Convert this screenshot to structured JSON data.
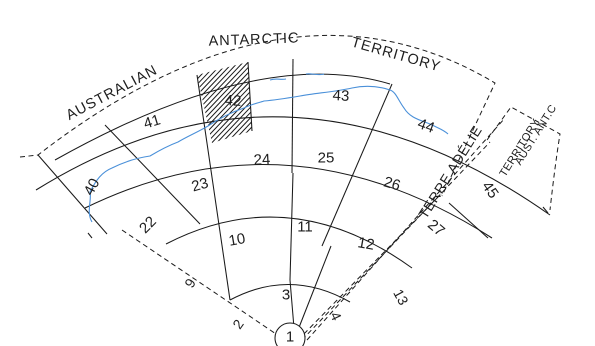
{
  "territory_labels": {
    "australian": "AUSTRALIAN",
    "antarctic": "ANTARCTIC",
    "territory": "TERRITORY",
    "terre_adelie": "TERRE ADÉLIE",
    "aust_ant_line1": "AUST. ANT.C",
    "aust_ant_line2": "TERRITORY"
  },
  "sector_numbers": {
    "s1": "1",
    "s2": "2",
    "s3": "3",
    "s4": "4",
    "s9": "9",
    "s10": "10",
    "s11": "11",
    "s12": "12",
    "s13": "13",
    "s22": "22",
    "s23": "23",
    "s24": "24",
    "s25": "25",
    "s26": "26",
    "s27": "27",
    "s40": "40",
    "s41": "41",
    "s42": "42",
    "s43": "43",
    "s44": "44",
    "s45": "45"
  },
  "colors": {
    "lines": "#1a1a1a",
    "coastline": "#4a90d9",
    "background": "#ffffff"
  },
  "highlighted_sector": "42"
}
